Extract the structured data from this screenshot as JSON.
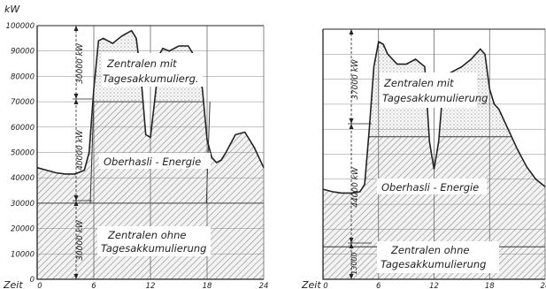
{
  "chart_data": [
    {
      "type": "area",
      "ylabel": "kW",
      "xlabel": "Zeit",
      "x_ticks": [
        0,
        6,
        12,
        18,
        24
      ],
      "x_tick_labels": [
        "0",
        "6",
        "12",
        "18",
        "24"
      ],
      "y_ticks": [
        0,
        10000,
        20000,
        30000,
        40000,
        50000,
        60000,
        70000,
        80000,
        90000,
        100000
      ],
      "y_tick_labels": [
        "0",
        "10000",
        "20000",
        "30000",
        "40000",
        "50000",
        "60000",
        "70000",
        "80000",
        "90000",
        "100000"
      ],
      "xlim": [
        0,
        24
      ],
      "ylim": [
        0,
        100000
      ],
      "grid": true,
      "layers": [
        {
          "name": "Zentralen ohne Tagesakkumulierung",
          "bottom": 0,
          "top": 30000
        },
        {
          "name": "Oberhasli - Energie",
          "bottom": 30000,
          "top": 70000
        },
        {
          "name": "Zentralen mit Tagesakkumulierg.",
          "bottom": 70000,
          "top": "load"
        }
      ],
      "load_curve": {
        "x": [
          0,
          1,
          2,
          3,
          4,
          5,
          5.5,
          6,
          6.5,
          7,
          8,
          9,
          10,
          10.5,
          11,
          11.5,
          12,
          12.5,
          13,
          13.3,
          14,
          15,
          16,
          17,
          17.5,
          18,
          18.5,
          19,
          19.5,
          20,
          21,
          22,
          23,
          24
        ],
        "y": [
          44000,
          43000,
          42000,
          41500,
          41500,
          43000,
          50000,
          75000,
          94000,
          95000,
          93000,
          96000,
          98000,
          95000,
          80000,
          57000,
          56000,
          72000,
          89000,
          91000,
          90000,
          92000,
          92000,
          86000,
          75000,
          55000,
          48000,
          46000,
          47000,
          50000,
          57000,
          58000,
          52000,
          44000
        ]
      },
      "annotations": [
        "30000 kW",
        "40000 kW",
        "30000 kW"
      ]
    },
    {
      "type": "area",
      "xlabel": "Zeit",
      "x_ticks": [
        0,
        6,
        12,
        18,
        24
      ],
      "x_tick_labels": [
        "0",
        "6",
        "12",
        "18",
        "24"
      ],
      "xlim": [
        0,
        24
      ],
      "ylim": [
        0,
        100000
      ],
      "grid": true,
      "layers": [
        {
          "name": "Zentralen ohne Tagesakkumulierung",
          "bottom": 0,
          "top": 13000
        },
        {
          "name": "Oberhasli - Energie",
          "bottom": 13000,
          "top": "load"
        },
        {
          "name": "Zentralen mit Tagesakkumulierung",
          "bottom": 57000,
          "top": "load"
        }
      ],
      "load_curve": {
        "x": [
          0,
          1,
          2,
          3,
          4,
          4.5,
          5,
          5.5,
          6,
          6.5,
          7,
          8,
          9,
          10,
          11,
          11.5,
          12,
          12.5,
          13,
          13.5,
          14,
          15,
          16,
          17,
          17.5,
          18,
          18.5,
          19,
          20,
          21,
          22,
          23,
          24
        ],
        "y": [
          36000,
          35000,
          34500,
          34500,
          35000,
          38000,
          60000,
          85000,
          95000,
          94000,
          90000,
          86000,
          86000,
          88000,
          85000,
          55000,
          44000,
          55000,
          78000,
          82000,
          83000,
          85000,
          88000,
          92000,
          90000,
          76000,
          70000,
          68000,
          60000,
          52000,
          45000,
          40000,
          37000
        ]
      },
      "annotations": [
        "37000 kW",
        "44000 kW",
        "13000"
      ]
    }
  ],
  "texts": {
    "unit": "kW",
    "zeit": "Zeit",
    "left_mit_1": "Zentralen mit",
    "left_mit_2": "Tagesakkumulierg.",
    "left_ober": "Oberhasli - Energie",
    "left_ohne_1": "Zentralen ohne",
    "left_ohne_2": "Tagesakkumulierung",
    "left_dim_top": "30000 kW",
    "left_dim_mid": "40000 kW",
    "left_dim_bot": "30000 kW",
    "right_mit_1": "Zentralen mit",
    "right_mit_2": "Tagesakkumulierung",
    "right_ober": "Oberhasli - Energie",
    "right_ohne_1": "Zentralen ohne",
    "right_ohne_2": "Tagesakkumulierung",
    "right_dim_top": "37000 kW",
    "right_dim_mid": "44000 kW",
    "right_dim_bot": "13000"
  }
}
